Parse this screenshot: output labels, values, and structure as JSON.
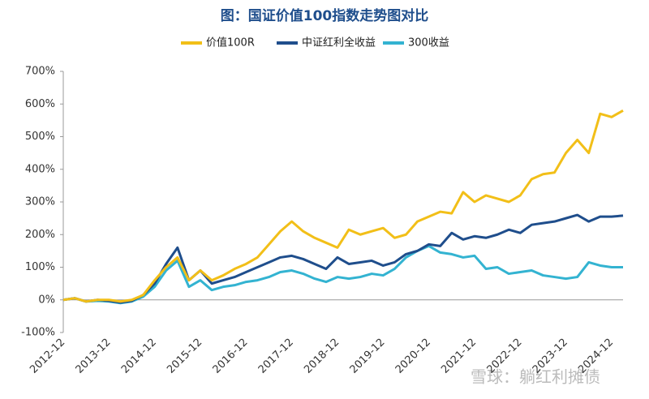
{
  "chart_data": {
    "type": "line",
    "title": "图：国证价值100指数走势图对比",
    "annotation": "雪球：躺红利摊债",
    "categories": [
      "2012-12",
      null,
      null,
      null,
      "2013-12",
      null,
      null,
      null,
      "2014-12",
      null,
      null,
      null,
      "2015-12",
      null,
      null,
      null,
      "2016-12",
      null,
      null,
      null,
      "2017-12",
      null,
      null,
      null,
      "2018-12",
      null,
      null,
      null,
      "2019-12",
      null,
      null,
      null,
      "2020-12",
      null,
      null,
      null,
      "2021-12",
      null,
      null,
      null,
      "2022-12",
      null,
      null,
      null,
      "2023-12",
      null,
      null,
      null,
      "2024-12",
      null
    ],
    "series": [
      {
        "name": "价值100R",
        "color": "#f2bf18",
        "values": [
          0,
          5,
          -5,
          0,
          0,
          -5,
          0,
          15,
          60,
          100,
          130,
          60,
          90,
          60,
          75,
          95,
          110,
          130,
          170,
          210,
          240,
          210,
          190,
          175,
          160,
          215,
          200,
          210,
          220,
          190,
          200,
          240,
          255,
          270,
          265,
          330,
          300,
          320,
          310,
          300,
          320,
          370,
          385,
          390,
          450,
          490,
          450,
          570,
          560,
          580
        ]
      },
      {
        "name": "中证红利全收益",
        "color": "#1f4e8c",
        "values": [
          0,
          5,
          -5,
          0,
          -3,
          -8,
          -3,
          15,
          50,
          110,
          160,
          60,
          90,
          50,
          60,
          70,
          85,
          100,
          115,
          130,
          135,
          125,
          110,
          95,
          130,
          110,
          115,
          120,
          105,
          115,
          140,
          150,
          170,
          165,
          205,
          185,
          195,
          190,
          200,
          215,
          205,
          230,
          235,
          240,
          250,
          260,
          240,
          255,
          255,
          258
        ]
      },
      {
        "name": "300收益",
        "color": "#33b3d1",
        "values": [
          0,
          5,
          -5,
          -3,
          -5,
          -10,
          -5,
          10,
          40,
          90,
          120,
          40,
          60,
          30,
          40,
          45,
          55,
          60,
          70,
          85,
          90,
          80,
          65,
          55,
          70,
          65,
          70,
          80,
          75,
          95,
          130,
          150,
          165,
          145,
          140,
          130,
          135,
          95,
          100,
          80,
          85,
          90,
          75,
          70,
          65,
          70,
          115,
          105,
          100,
          100
        ]
      }
    ],
    "ylim": [
      -100,
      700
    ],
    "yticks": [
      {
        "value": -100,
        "label": "-100%"
      },
      {
        "value": 0,
        "label": "0%"
      },
      {
        "value": 100,
        "label": "100%"
      },
      {
        "value": 200,
        "label": "200%"
      },
      {
        "value": 300,
        "label": "300%"
      },
      {
        "value": 400,
        "label": "400%"
      },
      {
        "value": 500,
        "label": "500%"
      },
      {
        "value": 600,
        "label": "600%"
      },
      {
        "value": 700,
        "label": "700%"
      }
    ],
    "legend": "top"
  }
}
